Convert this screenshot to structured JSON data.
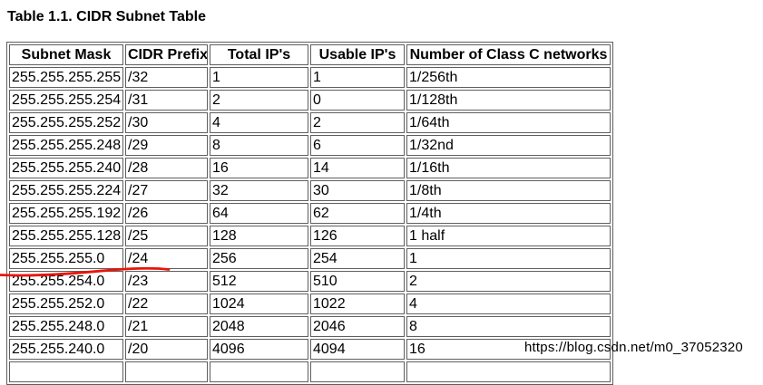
{
  "title": "Table 1.1. CIDR Subnet Table",
  "table": {
    "columns": [
      "Subnet Mask",
      "CIDR Prefix",
      "Total IP's",
      "Usable IP's",
      "Number of Class C networks"
    ],
    "rows": [
      [
        "255.255.255.255",
        "/32",
        "1",
        "1",
        "1/256th"
      ],
      [
        "255.255.255.254",
        "/31",
        "2",
        "0",
        "1/128th"
      ],
      [
        "255.255.255.252",
        "/30",
        "4",
        "2",
        "1/64th"
      ],
      [
        "255.255.255.248",
        "/29",
        "8",
        "6",
        "1/32nd"
      ],
      [
        "255.255.255.240",
        "/28",
        "16",
        "14",
        "1/16th"
      ],
      [
        "255.255.255.224",
        "/27",
        "32",
        "30",
        "1/8th"
      ],
      [
        "255.255.255.192",
        "/26",
        "64",
        "62",
        "1/4th"
      ],
      [
        "255.255.255.128",
        "/25",
        "128",
        "126",
        "1 half"
      ],
      [
        "255.255.255.0",
        "/24",
        "256",
        "254",
        "1"
      ],
      [
        "255.255.254.0",
        "/23",
        "512",
        "510",
        "2"
      ],
      [
        "255.255.252.0",
        "/22",
        "1024",
        "1022",
        "4"
      ],
      [
        "255.255.248.0",
        "/21",
        "2048",
        "2046",
        "8"
      ],
      [
        "255.255.240.0",
        "/20",
        "4096",
        "4094",
        "16"
      ]
    ],
    "has_partial_clipped_row": true
  },
  "annotation": {
    "kind": "hand-drawn red underline beneath the 255.255.255.0 /24 row",
    "color": "#e8150a"
  },
  "watermark": {
    "text": "https://blog.csdn.net/m0_37052320",
    "color": "#c8ccd0"
  },
  "colors": {
    "border": "#5f5f5f",
    "text": "#000000",
    "background": "#ffffff"
  }
}
